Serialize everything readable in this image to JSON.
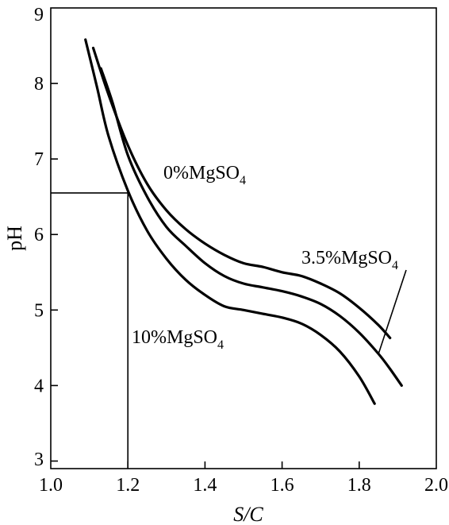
{
  "chart_data": {
    "type": "line",
    "xlabel": "S/C",
    "ylabel": "pH",
    "xlim": [
      1.0,
      2.0
    ],
    "ylim": [
      2.9,
      9.0
    ],
    "xticks": [
      "1.0",
      "1.2",
      "1.4",
      "1.6",
      "1.8",
      "2.0"
    ],
    "yticks": [
      "3",
      "4",
      "5",
      "6",
      "7",
      "8",
      "9"
    ],
    "grid": false,
    "series": [
      {
        "label_main": "0%MgSO",
        "label_sub": "4",
        "x": [
          1.11,
          1.15,
          1.2,
          1.25,
          1.3,
          1.35,
          1.4,
          1.45,
          1.5,
          1.55,
          1.6,
          1.65,
          1.7,
          1.75,
          1.8,
          1.85,
          1.88
        ],
        "y": [
          8.47,
          7.85,
          7.18,
          6.67,
          6.32,
          6.07,
          5.88,
          5.73,
          5.62,
          5.57,
          5.5,
          5.45,
          5.35,
          5.22,
          5.03,
          4.8,
          4.63
        ]
      },
      {
        "label_main": "3.5%MgSO",
        "label_sub": "4",
        "x": [
          1.13,
          1.16,
          1.2,
          1.25,
          1.3,
          1.35,
          1.4,
          1.45,
          1.5,
          1.55,
          1.6,
          1.65,
          1.7,
          1.75,
          1.8,
          1.85,
          1.88,
          1.91
        ],
        "y": [
          8.2,
          7.75,
          7.05,
          6.5,
          6.1,
          5.85,
          5.62,
          5.45,
          5.35,
          5.3,
          5.25,
          5.18,
          5.08,
          4.92,
          4.7,
          4.42,
          4.22,
          4.0
        ]
      },
      {
        "label_main": "10%MgSO",
        "label_sub": "4",
        "x": [
          1.09,
          1.12,
          1.15,
          1.2,
          1.25,
          1.3,
          1.35,
          1.4,
          1.45,
          1.5,
          1.55,
          1.6,
          1.65,
          1.7,
          1.75,
          1.8,
          1.84
        ],
        "y": [
          8.58,
          7.95,
          7.3,
          6.58,
          6.05,
          5.68,
          5.4,
          5.2,
          5.05,
          5.0,
          4.95,
          4.9,
          4.82,
          4.67,
          4.45,
          4.12,
          3.76
        ]
      }
    ],
    "reference_point": {
      "x": 1.2,
      "y": 6.55
    }
  }
}
